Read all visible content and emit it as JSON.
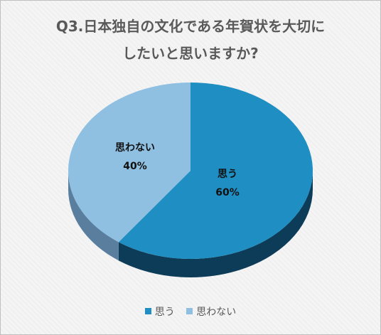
{
  "chart_data": {
    "type": "pie",
    "title_lines": [
      "Q3.日本独自の文化である年賀状を大切に",
      "したいと思いますか?"
    ],
    "categories": [
      "思う",
      "思わない"
    ],
    "values": [
      60,
      40
    ],
    "value_labels": [
      "60%",
      "40%"
    ],
    "colors": [
      "#1f8ec2",
      "#8fc0e2"
    ],
    "side_colors": [
      "#0d3c59",
      "#5a7f9e"
    ],
    "legend_position": "bottom",
    "style": "3d"
  }
}
